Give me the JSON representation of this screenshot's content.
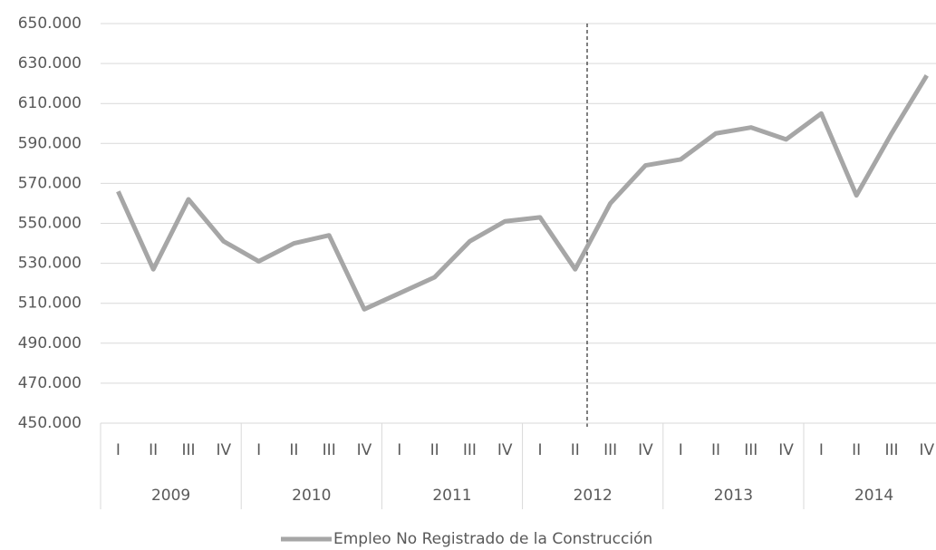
{
  "chart_data": {
    "type": "line",
    "categories": [
      "I",
      "II",
      "III",
      "IV",
      "I",
      "II",
      "III",
      "IV",
      "I",
      "II",
      "III",
      "IV",
      "I",
      "II",
      "III",
      "IV",
      "I",
      "II",
      "III",
      "IV",
      "I",
      "II",
      "III",
      "IV"
    ],
    "groups": [
      "2009",
      "2010",
      "2011",
      "2012",
      "2013",
      "2014"
    ],
    "series": [
      {
        "name": "Empleo No Registrado de la Construcción",
        "color": "#a6a6a6",
        "values": [
          566000,
          527000,
          562000,
          541000,
          531000,
          540000,
          544000,
          507000,
          515000,
          523000,
          541000,
          551000,
          553000,
          527000,
          560000,
          579000,
          582000,
          595000,
          598000,
          592000,
          605000,
          564000,
          595000,
          624000
        ]
      }
    ],
    "ylim": [
      450000,
      650000
    ],
    "yticks": [
      {
        "value": 450000,
        "label": "450.000"
      },
      {
        "value": 470000,
        "label": "470.000"
      },
      {
        "value": 490000,
        "label": "490.000"
      },
      {
        "value": 510000,
        "label": "510.000"
      },
      {
        "value": 530000,
        "label": "530.000"
      },
      {
        "value": 550000,
        "label": "550.000"
      },
      {
        "value": 570000,
        "label": "570.000"
      },
      {
        "value": 590000,
        "label": "590.000"
      },
      {
        "value": 610000,
        "label": "610.000"
      },
      {
        "value": 630000,
        "label": "630.000"
      },
      {
        "value": 650000,
        "label": "650.000"
      }
    ],
    "grid": true,
    "legend": "bottom"
  }
}
